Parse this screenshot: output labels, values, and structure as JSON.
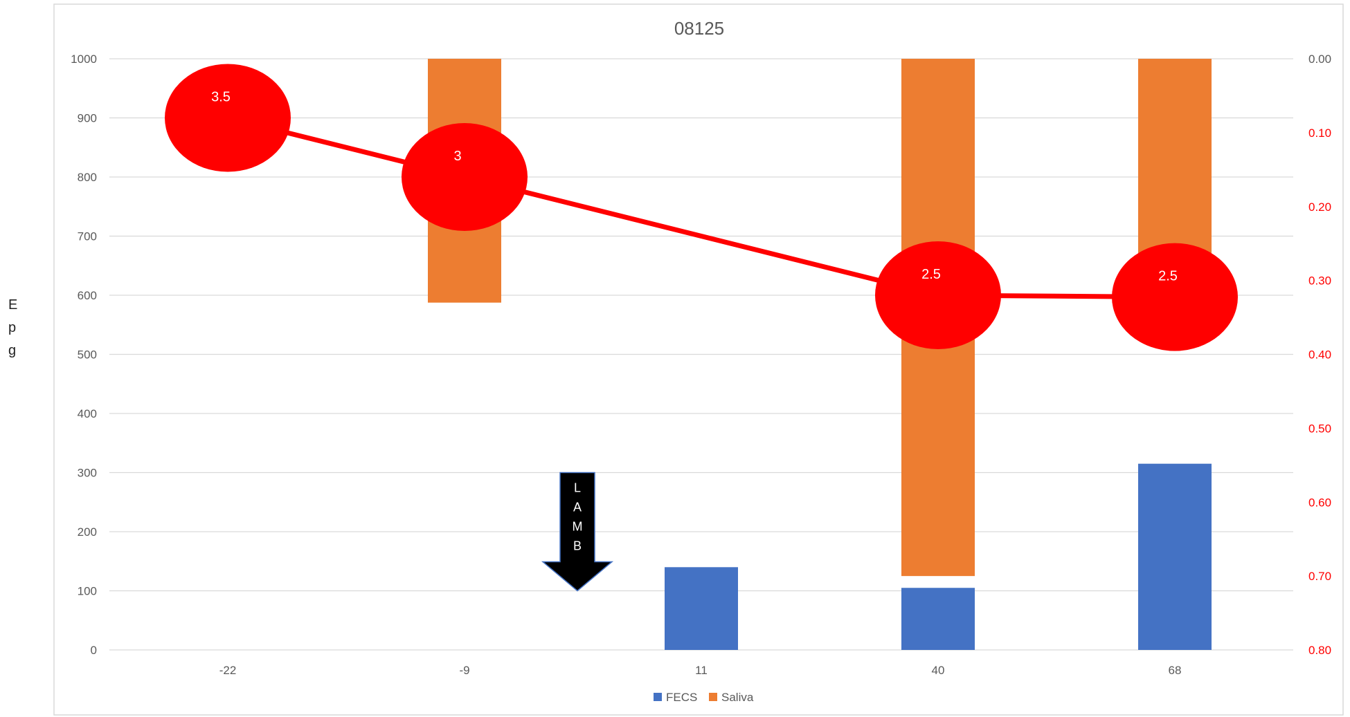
{
  "chart_data": {
    "type": "bar",
    "title": "08125",
    "ylabel": "Epg",
    "categories": [
      "-22",
      "-9",
      "11",
      "40",
      "68"
    ],
    "ylim": [
      0,
      1000
    ],
    "yticks": [
      0,
      100,
      200,
      300,
      400,
      500,
      600,
      700,
      800,
      900,
      1000
    ],
    "y2lim": [
      0.0,
      0.8
    ],
    "y2_reversed": true,
    "y2ticks": [
      "0.00",
      "0.10",
      "0.20",
      "0.30",
      "0.40",
      "0.50",
      "0.60",
      "0.70",
      "0.80"
    ],
    "series": [
      {
        "name": "FECS",
        "color": "#4472C4",
        "kind": "bar",
        "values": [
          null,
          null,
          140,
          105,
          315
        ]
      },
      {
        "name": "Saliva",
        "color": "#ED7D31",
        "kind": "bar-from-top",
        "values": [
          null,
          0.33,
          null,
          0.7,
          0.32
        ]
      },
      {
        "kind": "line",
        "color": "#FF0000",
        "values": [
          900,
          800,
          null,
          600,
          597
        ],
        "labels": [
          "3.5",
          "3",
          "",
          "2.5",
          "2.5"
        ]
      }
    ],
    "annotation": {
      "text": [
        "L",
        "A",
        "M",
        "B"
      ],
      "x_between": [
        "-9",
        "11"
      ],
      "y_top": 300,
      "y_bottom": 100
    },
    "grid": true,
    "legend_position": "bottom"
  }
}
